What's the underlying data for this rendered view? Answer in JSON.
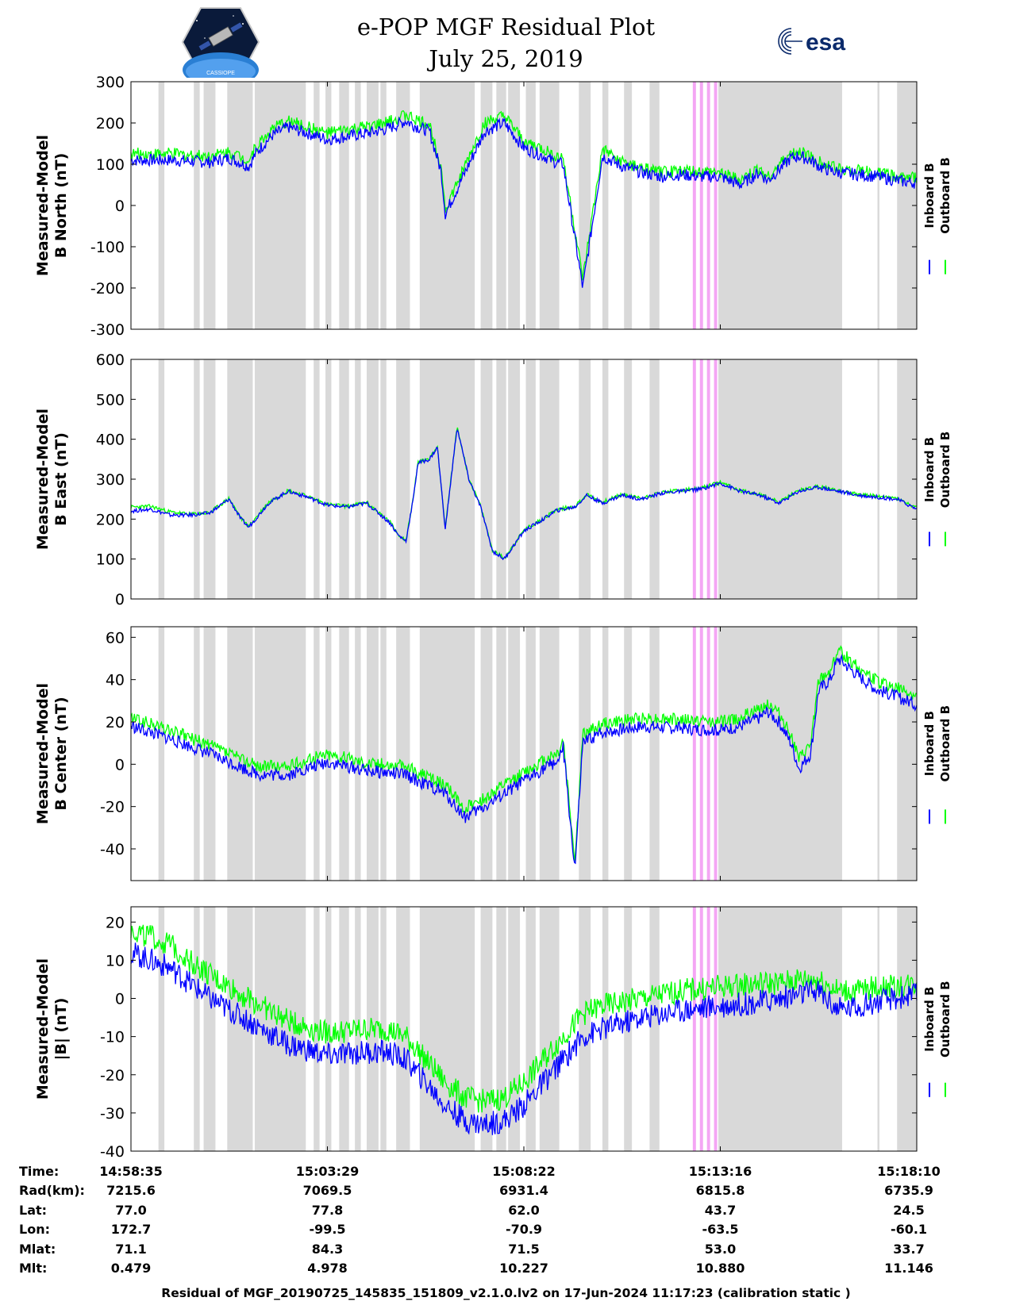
{
  "title": {
    "line1": "e-POP MGF Residual Plot",
    "line2": "July 25, 2019"
  },
  "logos": {
    "left": "cassiope-mission-logo",
    "left_text": "CASSIOPE",
    "right": "esa-logo",
    "right_text": "esa"
  },
  "colors": {
    "inboard": "#0000ff",
    "outboard": "#00ff00",
    "gap_shade": "#d9d9d9",
    "highlight": "#f4a6f4"
  },
  "chart_data": [
    {
      "type": "line",
      "ylabel_line1": "Measured-Model",
      "ylabel_line2": "B North (nT)",
      "ylim": [
        -300,
        300
      ],
      "yticks": [
        300,
        200,
        100,
        0,
        -100,
        -200,
        -300
      ],
      "legend": [
        "Inboard B",
        "Outboard B"
      ],
      "series": [
        {
          "name": "Inboard B",
          "color": "#0000ff",
          "x": [
            0,
            1,
            2,
            2.5,
            3,
            3.2,
            3.6,
            4,
            5,
            6,
            6.5,
            7,
            7.3,
            7.6,
            7.9,
            8,
            8.5,
            9,
            9.5,
            10,
            10.5,
            10.8,
            11,
            11.5,
            12,
            12.5,
            13,
            13.5,
            14,
            14.5,
            15,
            15.5,
            16,
            16.2,
            16.8,
            17,
            17.3,
            17.6,
            18,
            19,
            19.5,
            20
          ],
          "values": [
            110,
            110,
            105,
            115,
            95,
            130,
            170,
            190,
            160,
            175,
            185,
            205,
            190,
            180,
            80,
            -20,
            80,
            180,
            200,
            140,
            120,
            105,
            100,
            -200,
            120,
            95,
            80,
            70,
            75,
            70,
            70,
            50,
            80,
            60,
            115,
            120,
            110,
            90,
            80,
            70,
            60,
            55
          ]
        },
        {
          "name": "Outboard B",
          "color": "#00ff00",
          "x": [
            0,
            1,
            2,
            2.5,
            3,
            3.2,
            3.6,
            4,
            5,
            6,
            6.5,
            7,
            7.3,
            7.6,
            7.9,
            8,
            8.5,
            9,
            9.5,
            10,
            10.5,
            10.8,
            11,
            11.5,
            12,
            12.5,
            13,
            13.5,
            14,
            14.5,
            15,
            15.5,
            16,
            16.2,
            16.8,
            17,
            17.3,
            17.6,
            18,
            19,
            19.5,
            20
          ],
          "values": [
            125,
            125,
            120,
            130,
            110,
            145,
            185,
            205,
            175,
            190,
            200,
            220,
            205,
            195,
            95,
            -10,
            95,
            200,
            215,
            155,
            135,
            120,
            115,
            -180,
            135,
            105,
            90,
            80,
            85,
            80,
            80,
            60,
            90,
            70,
            125,
            130,
            120,
            100,
            90,
            80,
            70,
            65
          ]
        }
      ]
    },
    {
      "type": "line",
      "ylabel_line1": "Measured-Model",
      "ylabel_line2": "B East (nT)",
      "ylim": [
        0,
        600
      ],
      "yticks": [
        600,
        500,
        400,
        300,
        200,
        100,
        0
      ],
      "legend": [
        "Inboard B",
        "Outboard B"
      ],
      "series": [
        {
          "name": "Inboard B",
          "color": "#0000ff",
          "x": [
            0,
            0.5,
            1,
            1.5,
            2,
            2.5,
            2.8,
            3,
            3.5,
            4,
            4.5,
            5,
            5.5,
            6,
            6.3,
            6.6,
            6.8,
            7,
            7.2,
            7.3,
            7.6,
            7.8,
            8,
            8.3,
            8.6,
            8.9,
            9.2,
            9.5,
            10,
            10.5,
            10.8,
            11,
            11.3,
            11.6,
            12,
            12.5,
            13,
            13.5,
            14,
            14.5,
            15,
            15.5,
            16,
            16.5,
            17,
            17.5,
            18,
            18.5,
            19,
            19.5,
            20
          ],
          "values": [
            220,
            225,
            210,
            210,
            215,
            250,
            200,
            180,
            240,
            270,
            255,
            235,
            230,
            240,
            215,
            190,
            160,
            145,
            260,
            340,
            350,
            380,
            175,
            430,
            300,
            230,
            120,
            100,
            170,
            200,
            220,
            225,
            230,
            260,
            240,
            260,
            250,
            265,
            270,
            275,
            290,
            270,
            260,
            240,
            270,
            280,
            270,
            260,
            255,
            250,
            225
          ]
        },
        {
          "name": "Outboard B",
          "color": "#00ff00",
          "x": [
            0,
            0.5,
            1,
            1.5,
            2,
            2.5,
            2.8,
            3,
            3.5,
            4,
            4.5,
            5,
            5.5,
            6,
            6.3,
            6.6,
            6.8,
            7,
            7.2,
            7.3,
            7.6,
            7.8,
            8,
            8.3,
            8.6,
            8.9,
            9.2,
            9.5,
            10,
            10.5,
            10.8,
            11,
            11.3,
            11.6,
            12,
            12.5,
            13,
            13.5,
            14,
            14.5,
            15,
            15.5,
            16,
            16.5,
            17,
            17.5,
            18,
            18.5,
            19,
            19.5,
            20
          ],
          "values": [
            230,
            232,
            218,
            212,
            216,
            252,
            202,
            182,
            242,
            272,
            257,
            237,
            232,
            242,
            217,
            192,
            162,
            147,
            262,
            342,
            352,
            382,
            177,
            432,
            302,
            232,
            122,
            102,
            172,
            202,
            222,
            227,
            232,
            262,
            242,
            262,
            252,
            267,
            272,
            277,
            292,
            272,
            262,
            242,
            272,
            282,
            272,
            262,
            257,
            252,
            227
          ]
        }
      ]
    },
    {
      "type": "line",
      "ylabel_line1": "Measured-Model",
      "ylabel_line2": "B Center (nT)",
      "ylim": [
        -55,
        65
      ],
      "yticks": [
        60,
        40,
        20,
        0,
        -20,
        -40
      ],
      "legend": [
        "Inboard B",
        "Outboard B"
      ],
      "series": [
        {
          "name": "Inboard B",
          "color": "#0000ff",
          "x": [
            0,
            1,
            2,
            3,
            3.3,
            4,
            4.5,
            5,
            6,
            7,
            7.3,
            7.8,
            8,
            8.5,
            9,
            9.5,
            10,
            10.5,
            10.9,
            11,
            11.3,
            11.5,
            12,
            13,
            14,
            15,
            15.5,
            16,
            16.2,
            16.5,
            16.8,
            17,
            17.3,
            17.5,
            17.8,
            18,
            18.5,
            19,
            19.5,
            20
          ],
          "values": [
            18,
            12,
            5,
            -3,
            -5,
            -5,
            -2,
            1,
            -3,
            -5,
            -8,
            -12,
            -14,
            -25,
            -20,
            -14,
            -8,
            -2,
            2,
            8,
            -50,
            10,
            15,
            18,
            17,
            16,
            18,
            22,
            25,
            20,
            10,
            -2,
            5,
            35,
            40,
            50,
            42,
            35,
            32,
            28
          ]
        },
        {
          "name": "Outboard B",
          "color": "#00ff00",
          "x": [
            0,
            1,
            2,
            3,
            3.3,
            4,
            4.5,
            5,
            6,
            7,
            7.3,
            7.8,
            8,
            8.5,
            9,
            9.5,
            10,
            10.5,
            10.9,
            11,
            11.3,
            11.5,
            12,
            13,
            14,
            15,
            15.5,
            16,
            16.2,
            16.5,
            16.8,
            17,
            17.3,
            17.5,
            17.8,
            18,
            18.5,
            19,
            19.5,
            20
          ],
          "values": [
            22,
            16,
            9,
            1,
            -1,
            -1,
            2,
            5,
            1,
            -1,
            -4,
            -8,
            -10,
            -21,
            -16,
            -10,
            -4,
            2,
            6,
            12,
            -46,
            14,
            19,
            22,
            21,
            20,
            22,
            26,
            29,
            24,
            14,
            2,
            9,
            39,
            44,
            54,
            46,
            39,
            36,
            32
          ]
        }
      ]
    },
    {
      "type": "line",
      "ylabel_line1": "Measured-Model",
      "ylabel_line2": "|B| (nT)",
      "ylim": [
        -40,
        24
      ],
      "yticks": [
        20,
        10,
        0,
        -10,
        -20,
        -30,
        -40
      ],
      "legend": [
        "Inboard B",
        "Outboard B"
      ],
      "series": [
        {
          "name": "Inboard B",
          "color": "#0000ff",
          "x": [
            0,
            1,
            2,
            3,
            4,
            5,
            6,
            6.5,
            7,
            7.5,
            8,
            8.5,
            9,
            9.5,
            10,
            10.5,
            11,
            11.5,
            12,
            13,
            14,
            15,
            16,
            16.5,
            17,
            17.5,
            18,
            18.5,
            19,
            19.5,
            20
          ],
          "values": [
            12,
            8,
            0,
            -6,
            -12,
            -15,
            -14,
            -14,
            -16,
            -22,
            -28,
            -32,
            -33,
            -32,
            -28,
            -22,
            -16,
            -10,
            -8,
            -5,
            -3,
            -2,
            -1,
            0,
            1,
            2,
            -3,
            -2,
            -1,
            0,
            1
          ]
        },
        {
          "name": "Outboard B",
          "color": "#00ff00",
          "x": [
            0,
            1,
            2,
            3,
            4,
            5,
            6,
            6.5,
            7,
            7.5,
            8,
            8.5,
            9,
            9.5,
            10,
            10.5,
            11,
            11.5,
            12,
            13,
            14,
            15,
            16,
            16.5,
            17,
            17.5,
            18,
            18.5,
            19,
            19.5,
            20
          ],
          "values": [
            18,
            14,
            6,
            0,
            -6,
            -9,
            -8,
            -8,
            -10,
            -16,
            -22,
            -26,
            -27,
            -26,
            -22,
            -16,
            -10,
            -4,
            -2,
            0,
            2,
            3,
            4,
            4,
            5,
            5,
            2,
            2,
            3,
            3,
            4
          ]
        }
      ]
    }
  ],
  "x_axis": {
    "ticks": [
      "14:58:35",
      "15:03:29",
      "15:08:22",
      "15:13:16",
      "15:18:10"
    ]
  },
  "orbit_table": {
    "rows": [
      {
        "label": "Time:",
        "values": [
          "14:58:35",
          "15:03:29",
          "15:08:22",
          "15:13:16",
          "15:18:10"
        ]
      },
      {
        "label": "Rad(km):",
        "values": [
          "7215.6",
          "7069.5",
          "6931.4",
          "6815.8",
          "6735.9"
        ]
      },
      {
        "label": "Lat:",
        "values": [
          "77.0",
          "77.8",
          "62.0",
          "43.7",
          "24.5"
        ]
      },
      {
        "label": "Lon:",
        "values": [
          "172.7",
          "-99.5",
          "-70.9",
          "-63.5",
          "-60.1"
        ]
      },
      {
        "label": "Mlat:",
        "values": [
          "71.1",
          "84.3",
          "71.5",
          "53.0",
          "33.7"
        ]
      },
      {
        "label": "Mlt:",
        "values": [
          "0.479",
          "4.978",
          "10.227",
          "10.880",
          "11.146"
        ]
      }
    ]
  },
  "footer": "Residual of MGF_20190725_145835_151809_v2.1.0.lv2 on 17-Jun-2024 11:17:23 (calibration static )"
}
